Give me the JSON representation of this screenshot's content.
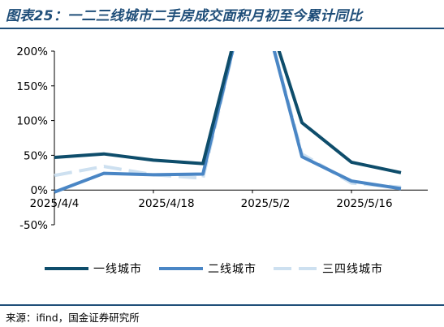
{
  "header": {
    "title": "图表25：一二三线城市二手房成交面积月初至今累计同比"
  },
  "footer": {
    "source": "来源：ifind，国金证券研究所"
  },
  "colors": {
    "accent": "#1f4e79",
    "series_tier1": "#0e4d6b",
    "series_tier2": "#4a86c5",
    "series_tier3": "#cde0f0"
  },
  "chart_data": {
    "type": "line",
    "title": "",
    "xlabel": "",
    "ylabel": "",
    "ylim": [
      -0.5,
      2.0
    ],
    "y_ticks": [
      -0.5,
      0,
      0.5,
      1.0,
      1.5,
      2.0
    ],
    "y_tick_labels": [
      "-50%",
      "0%",
      "50%",
      "100%",
      "150%",
      "200%"
    ],
    "x_tick_labels": [
      "2025/4/4",
      "2025/4/18",
      "2025/5/2",
      "2025/5/16"
    ],
    "x_tick_index": [
      0,
      2,
      4,
      6
    ],
    "x_count": 8,
    "grid": false,
    "legend_position": "bottom",
    "series": [
      {
        "name": "一线城市",
        "style": "solid",
        "values": [
          0.47,
          0.52,
          0.43,
          0.38,
          3.2,
          0.97,
          0.4,
          0.25
        ]
      },
      {
        "name": "二线城市",
        "style": "solid",
        "values": [
          -0.03,
          0.24,
          0.22,
          0.23,
          3.2,
          0.48,
          0.13,
          0.02
        ]
      },
      {
        "name": "三四线城市",
        "style": "dashed",
        "values": [
          0.21,
          0.34,
          0.22,
          0.17,
          3.2,
          0.52,
          0.1,
          0.04
        ]
      }
    ]
  }
}
